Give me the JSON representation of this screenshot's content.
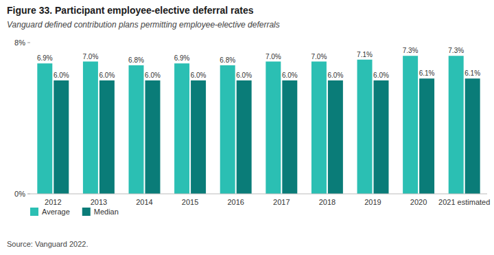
{
  "chart_data": {
    "type": "bar",
    "title": "Figure 33. Participant employee-elective deferral rates",
    "subtitle": "Vanguard defined contribution plans permitting employee-elective deferrals",
    "annotations": [
      "Source: Vanguard 2022."
    ],
    "categories": [
      "2012",
      "2013",
      "2014",
      "2015",
      "2016",
      "2017",
      "2018",
      "2019",
      "2020",
      "2021 estimated"
    ],
    "series": [
      {
        "name": "Average",
        "color": "#2bbfb3",
        "values": [
          6.9,
          7.0,
          6.8,
          6.9,
          6.8,
          7.0,
          7.0,
          7.1,
          7.3,
          7.3
        ],
        "value_labels": [
          "6.9%",
          "7.0%",
          "6.8%",
          "6.9%",
          "6.8%",
          "7.0%",
          "7.0%",
          "7.1%",
          "7.3%",
          "7.3%"
        ]
      },
      {
        "name": "Median",
        "color": "#0a7c78",
        "values": [
          6.0,
          6.0,
          6.0,
          6.0,
          6.0,
          6.0,
          6.0,
          6.0,
          6.1,
          6.1
        ],
        "value_labels": [
          "6.0%",
          "6.0%",
          "6.0%",
          "6.0%",
          "6.0%",
          "6.0%",
          "6.0%",
          "6.0%",
          "6.1%",
          "6.1%"
        ]
      }
    ],
    "ylim": [
      0,
      8
    ],
    "yticks": [
      {
        "value": 0,
        "label": "0%"
      },
      {
        "value": 8,
        "label": "8%"
      }
    ],
    "grid": false,
    "legend": "bottom",
    "data_labels": true
  }
}
